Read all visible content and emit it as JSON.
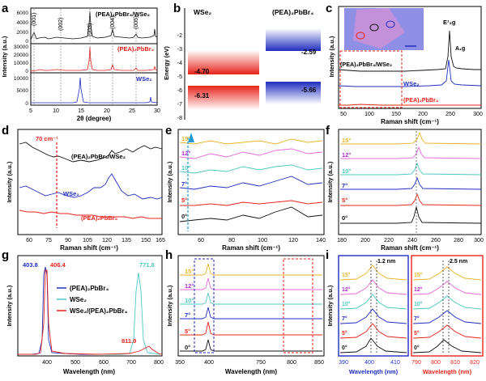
{
  "panel_letters": [
    "a",
    "b",
    "c",
    "d",
    "e",
    "f",
    "g",
    "h",
    "i"
  ],
  "colors": {
    "black": "#111111",
    "red": "#e8231b",
    "blue": "#1f2dbf",
    "cyan": "#4ec7c3",
    "purple": "#b12ed0",
    "magenta": "#e569d8",
    "yellow": "#e6b52b",
    "dblue": "#1a6fd6"
  },
  "a": {
    "ylabel": "Intensity (a.u.)",
    "xlabel": "2θ (degree)",
    "x_ticks": [
      "5",
      "10",
      "15",
      "20",
      "25",
      "30"
    ],
    "y_ticks_top": [
      "0",
      "2000",
      "4000",
      "6000"
    ],
    "y_ticks_mid": [
      "0",
      "10000",
      "20000",
      "30000"
    ],
    "y_ticks_bot": [
      "0",
      "5000",
      "10000"
    ],
    "peak_labels": [
      "(001)",
      "(002)",
      "(003)",
      "(004)",
      "(005)"
    ],
    "legend_top": "(PEA)₂PbBr₄/WSe₂",
    "legend_mid": "(PEA)₂PbBr₄",
    "legend_bot": "WSe₂"
  },
  "b": {
    "ylabel": "Energy (eV)",
    "y_ticks": [
      "-2",
      "-3",
      "-4",
      "-5",
      "-6",
      "-7",
      "-8"
    ],
    "left_title": "WSe₂",
    "right_title": "(PEA)₂PbBr₄",
    "levels": [
      "-4.70",
      "-6.31",
      "-2.59",
      "-5.66"
    ]
  },
  "c": {
    "ylabel": "Intensity (a.u.)",
    "xlabel": "Raman  shift (cm⁻¹)",
    "x_ticks": [
      "50",
      "100",
      "150",
      "200",
      "250",
      "300"
    ],
    "labels": [
      "(PEA)₂PbBr₄/WSe₂",
      "WSe₂",
      "(PEA)₂PbBr₄"
    ],
    "peak_e": "E¹₂g",
    "peak_a": "A₁g"
  },
  "d": {
    "ylabel": "Intensity (a.u.)",
    "xlabel": "Raman shift (cm⁻¹)",
    "x_ticks": [
      "60",
      "75",
      "90",
      "105",
      "120",
      "135",
      "150",
      "165"
    ],
    "marker": "70 cm⁻¹",
    "labels": [
      "(PEA)₂PbBr₄/WSe₂",
      "WSe₂",
      "(PEA)₂PbBr₄"
    ]
  },
  "e": {
    "ylabel": "Intensity (a.u.)",
    "xlabel": "Raman shift (cm⁻¹)",
    "x_ticks": [
      "60",
      "80",
      "100",
      "120",
      "140"
    ],
    "angles": [
      "0°",
      "5°",
      "7°",
      "10°",
      "12°",
      "15°"
    ]
  },
  "f": {
    "ylabel": "Intensity (a.u.)",
    "xlabel": "Raman shift (cm⁻¹)",
    "x_ticks": [
      "180",
      "200",
      "220",
      "240",
      "260",
      "280",
      "300"
    ],
    "angles": [
      "0°",
      "5°",
      "7°",
      "10°",
      "12°",
      "15°"
    ]
  },
  "g": {
    "ylabel": "Intensity (a.u.)",
    "xlabel": "Wavelength (nm)",
    "x_ticks": [
      "400",
      "500",
      "600",
      "700",
      "800"
    ],
    "peaks": [
      "403.8",
      "406.4",
      "771.8",
      "811.9"
    ],
    "legend": [
      "(PEA)₂PbBr₄",
      "WSe₂",
      "WSe₂/(PEA)₂PbBr₄"
    ]
  },
  "h": {
    "ylabel": "Intensity (a.u.)",
    "xlabel": "Wavelength (nm)",
    "x_ticks": [
      "350",
      "400",
      "750",
      "800",
      "850"
    ],
    "angles": [
      "0°",
      "5°",
      "7°",
      "10°",
      "12°",
      "15°"
    ]
  },
  "i": {
    "ylabel": "Intensity (a.u.)",
    "x_ticks_left": [
      "390",
      "400",
      "410"
    ],
    "x_ticks_right": [
      "790",
      "800",
      "810",
      "820"
    ],
    "xlabel_left": "Wavelength (nm)",
    "xlabel_right": "Wavelength (nm)",
    "shift_left": "1.2 nm",
    "shift_right": "2.5 nm",
    "angles": [
      "0°",
      "5°",
      "7°",
      "10°",
      "12°",
      "15°"
    ]
  }
}
